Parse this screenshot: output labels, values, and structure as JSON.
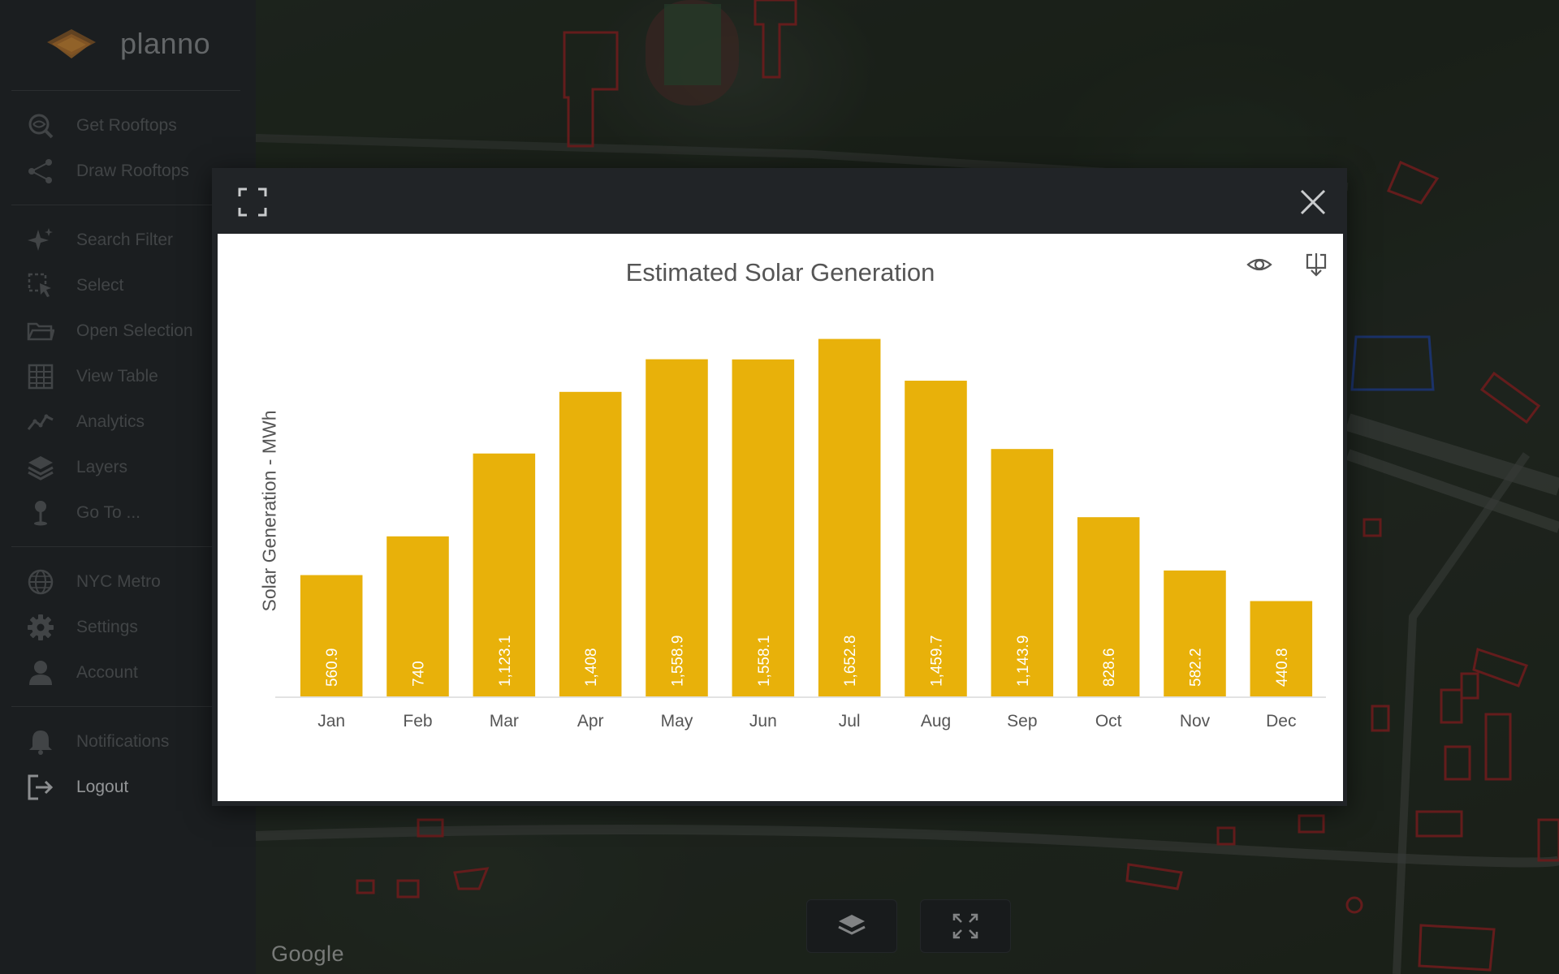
{
  "app": {
    "brand": "planno"
  },
  "sidebar": {
    "items": [
      {
        "label": "Get Rooftops",
        "icon": "search-globe-icon"
      },
      {
        "label": "Draw Rooftops",
        "icon": "share-nodes-icon"
      },
      {
        "label": "Search Filter",
        "icon": "sparkle-icon"
      },
      {
        "label": "Select",
        "icon": "select-cursor-icon"
      },
      {
        "label": "Open Selection",
        "icon": "folder-open-icon"
      },
      {
        "label": "View Table",
        "icon": "table-icon"
      },
      {
        "label": "Analytics",
        "icon": "line-chart-icon"
      },
      {
        "label": "Layers",
        "icon": "layers-icon"
      },
      {
        "label": "Go To ...",
        "icon": "map-pin-icon"
      },
      {
        "label": "NYC Metro",
        "icon": "globe-icon"
      },
      {
        "label": "Settings",
        "icon": "gear-icon"
      },
      {
        "label": "Account",
        "icon": "user-icon"
      },
      {
        "label": "Notifications",
        "icon": "bell-icon"
      },
      {
        "label": "Logout",
        "icon": "logout-icon"
      }
    ]
  },
  "map": {
    "attribution": "Google"
  },
  "dialog": {
    "expand_icon": "expand-icon",
    "close_icon": "close-icon",
    "view_icon": "eye-icon",
    "download_icon": "download-icon"
  },
  "colors": {
    "bar": "#e8b10a",
    "sidebar_bg": "#232628",
    "dialog_bg": "#212427",
    "rooftop_outline": "#d02a2a",
    "selected_outline": "#2a5bd8"
  },
  "chart_data": {
    "type": "bar",
    "title": "Estimated Solar Generation",
    "xlabel": "",
    "ylabel": "Solar Generation - MWh",
    "categories": [
      "Jan",
      "Feb",
      "Mar",
      "Apr",
      "May",
      "Jun",
      "Jul",
      "Aug",
      "Sep",
      "Oct",
      "Nov",
      "Dec"
    ],
    "values": [
      560.9,
      740,
      1123.1,
      1408,
      1558.9,
      1558.1,
      1652.8,
      1459.7,
      1143.9,
      828.6,
      582.2,
      440.8
    ],
    "value_labels": [
      "560.9",
      "740",
      "1,123.1",
      "1,408",
      "1,558.9",
      "1,558.1",
      "1,652.8",
      "1,459.7",
      "1,143.9",
      "828.6",
      "582.2",
      "440.8"
    ],
    "ylim": [
      0,
      1700
    ],
    "grid": false,
    "legend": "none"
  }
}
